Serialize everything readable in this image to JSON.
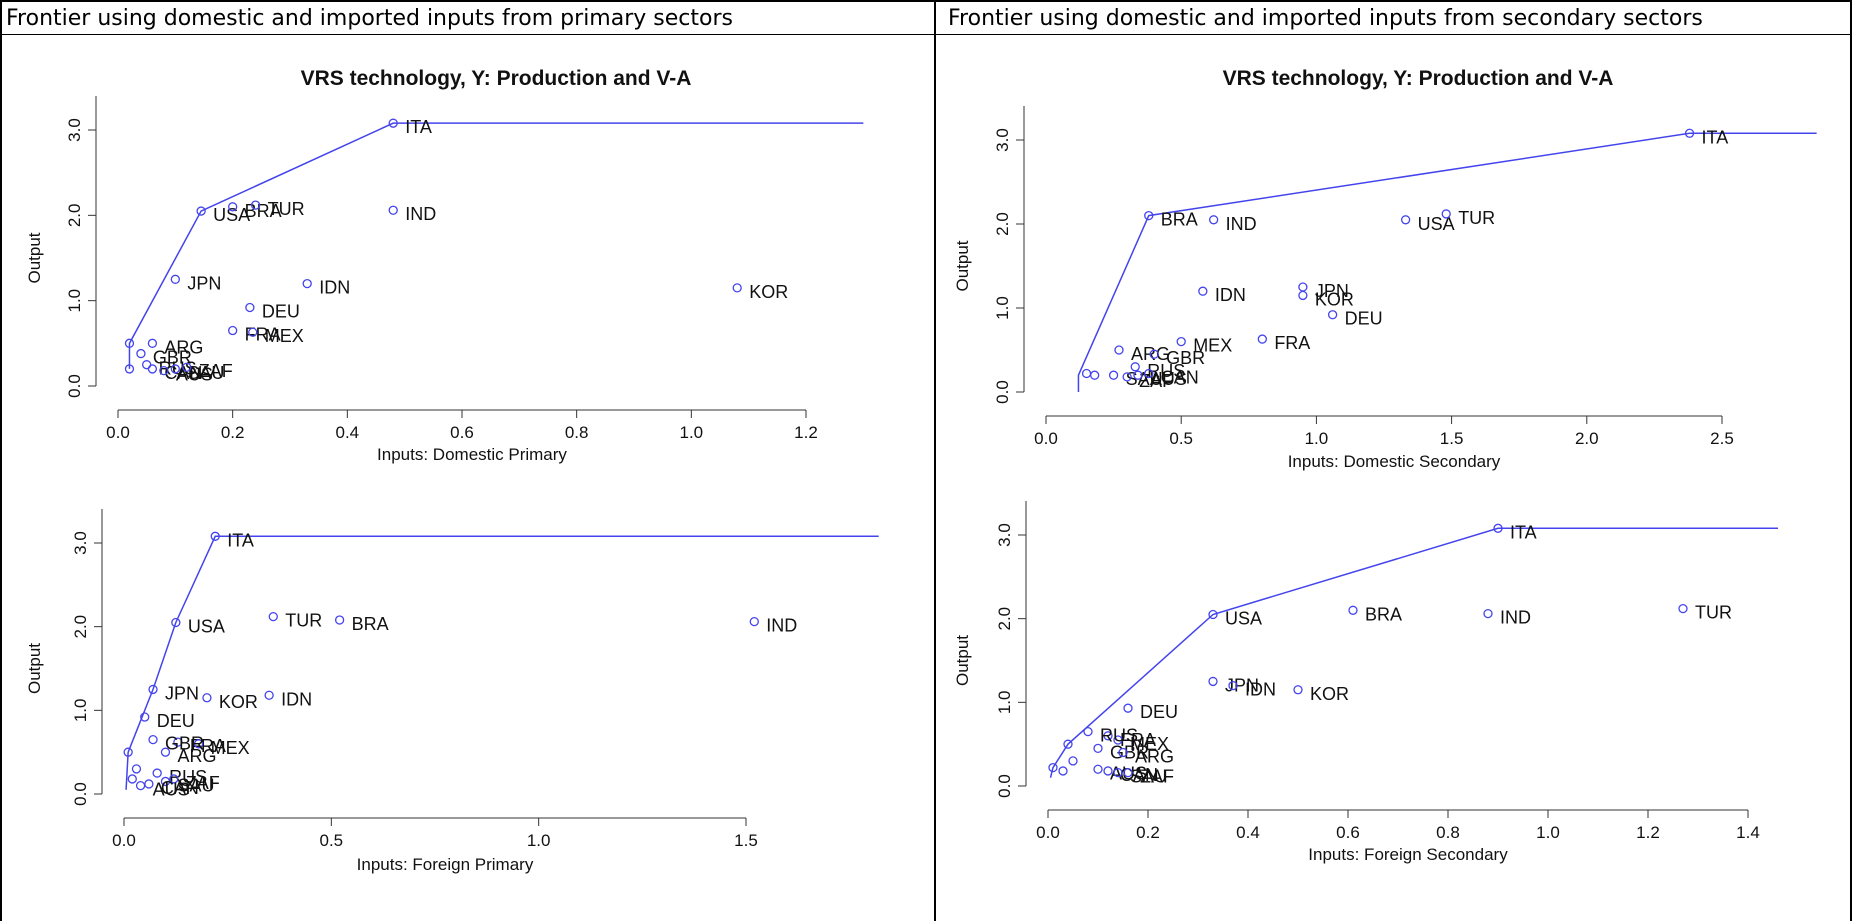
{
  "header": {
    "left_title": "Frontier using domestic and imported inputs from primary sectors",
    "right_title": "Frontier using domestic and imported inputs from secondary sectors"
  },
  "colors": {
    "frontier": "#4444ee",
    "points": "#4444ee",
    "text": "#111111",
    "axis": "#333333"
  },
  "chart_data": [
    {
      "id": "tl",
      "type": "scatter",
      "title": "VRS technology, Y: Production and V-A",
      "xlabel": "Inputs: Domestic Primary",
      "ylabel": "Output",
      "xlim": [
        0,
        1.2
      ],
      "ylim": [
        0,
        3
      ],
      "xticks": [
        "0.0",
        "0.2",
        "0.4",
        "0.6",
        "0.8",
        "1.0",
        "1.2"
      ],
      "yticks": [
        "0.0",
        "1.0",
        "2.0",
        "3.0"
      ],
      "frontier": [
        [
          0.02,
          0.2
        ],
        [
          0.02,
          0.5
        ],
        [
          0.145,
          2.05
        ],
        [
          0.48,
          3.08
        ],
        [
          1.3,
          3.08
        ]
      ],
      "points": [
        {
          "x": 0.48,
          "y": 3.08,
          "label": "ITA"
        },
        {
          "x": 0.145,
          "y": 2.05,
          "label": "USA"
        },
        {
          "x": 0.2,
          "y": 2.1,
          "label": "BRA"
        },
        {
          "x": 0.24,
          "y": 2.12,
          "label": "TUR"
        },
        {
          "x": 0.48,
          "y": 2.06,
          "label": "IND"
        },
        {
          "x": 0.1,
          "y": 1.25,
          "label": "JPN"
        },
        {
          "x": 0.33,
          "y": 1.2,
          "label": "IDN"
        },
        {
          "x": 1.08,
          "y": 1.15,
          "label": "KOR"
        },
        {
          "x": 0.23,
          "y": 0.92,
          "label": "DEU"
        },
        {
          "x": 0.2,
          "y": 0.65,
          "label": "FRA"
        },
        {
          "x": 0.235,
          "y": 0.63,
          "label": "MEX"
        },
        {
          "x": 0.06,
          "y": 0.5,
          "label": "ARG"
        },
        {
          "x": 0.04,
          "y": 0.38,
          "label": "GBR"
        },
        {
          "x": 0.05,
          "y": 0.25,
          "label": "RUS"
        },
        {
          "x": 0.06,
          "y": 0.2,
          "label": "CAN"
        },
        {
          "x": 0.08,
          "y": 0.18,
          "label": "AUS"
        },
        {
          "x": 0.1,
          "y": 0.2,
          "label": "SAU"
        },
        {
          "x": 0.12,
          "y": 0.22,
          "label": "ZAF"
        },
        {
          "x": 0.02,
          "y": 0.5,
          "label": ""
        },
        {
          "x": 0.02,
          "y": 0.2,
          "label": ""
        }
      ],
      "labels_text": [
        "ITA",
        "USA",
        "BRA",
        "TUR",
        "IND",
        "JPN",
        "IDN",
        "KOR",
        "DEU",
        "FRA",
        "MEX",
        "ARG",
        "GBR",
        "RUS",
        "CAN",
        "AUS",
        "SAU",
        "ZAF"
      ]
    },
    {
      "id": "tr",
      "type": "scatter",
      "title": "VRS technology, Y: Production and V-A",
      "xlabel": "Inputs: Domestic Secondary",
      "ylabel": "Output",
      "xlim": [
        0,
        2.5
      ],
      "ylim": [
        0,
        3
      ],
      "xticks": [
        "0.0",
        "0.5",
        "1.0",
        "1.5",
        "2.0",
        "2.5"
      ],
      "yticks": [
        "0.0",
        "1.0",
        "2.0",
        "3.0"
      ],
      "frontier": [
        [
          0.12,
          0.0
        ],
        [
          0.12,
          0.2
        ],
        [
          0.38,
          2.1
        ],
        [
          2.38,
          3.08
        ],
        [
          2.85,
          3.08
        ]
      ],
      "points": [
        {
          "x": 2.38,
          "y": 3.08,
          "label": "ITA"
        },
        {
          "x": 0.38,
          "y": 2.1,
          "label": "BRA"
        },
        {
          "x": 0.62,
          "y": 2.05,
          "label": "IND"
        },
        {
          "x": 1.33,
          "y": 2.05,
          "label": "USA"
        },
        {
          "x": 1.48,
          "y": 2.12,
          "label": "TUR"
        },
        {
          "x": 0.58,
          "y": 1.2,
          "label": "IDN"
        },
        {
          "x": 0.95,
          "y": 1.25,
          "label": "JPN"
        },
        {
          "x": 0.95,
          "y": 1.15,
          "label": "KOR"
        },
        {
          "x": 1.06,
          "y": 0.92,
          "label": "DEU"
        },
        {
          "x": 0.8,
          "y": 0.63,
          "label": "FRA"
        },
        {
          "x": 0.5,
          "y": 0.6,
          "label": "MEX"
        },
        {
          "x": 0.27,
          "y": 0.5,
          "label": "ARG"
        },
        {
          "x": 0.4,
          "y": 0.45,
          "label": "GBR"
        },
        {
          "x": 0.33,
          "y": 0.3,
          "label": "RUS"
        },
        {
          "x": 0.25,
          "y": 0.2,
          "label": "SAU"
        },
        {
          "x": 0.3,
          "y": 0.18,
          "label": "ZAF"
        },
        {
          "x": 0.34,
          "y": 0.2,
          "label": "AUS"
        },
        {
          "x": 0.38,
          "y": 0.22,
          "label": "CAN"
        },
        {
          "x": 0.15,
          "y": 0.22,
          "label": ""
        },
        {
          "x": 0.18,
          "y": 0.2,
          "label": ""
        }
      ],
      "labels_text": [
        "ITA",
        "BRA",
        "IND",
        "USA",
        "TUR",
        "IDN",
        "JPN",
        "KOR",
        "DEU",
        "FRA",
        "MEX",
        "ARG",
        "GBR",
        "RUS",
        "SAU",
        "ZAF",
        "AUS",
        "CAN"
      ]
    },
    {
      "id": "bl",
      "type": "scatter",
      "title": "",
      "xlabel": "Inputs: Foreign Primary",
      "ylabel": "Output",
      "xlim": [
        0,
        1.5
      ],
      "ylim": [
        0,
        3
      ],
      "xticks": [
        "0.0",
        "0.5",
        "1.0",
        "1.5"
      ],
      "yticks": [
        "0.0",
        "1.0",
        "2.0",
        "3.0"
      ],
      "frontier": [
        [
          0.005,
          0.05
        ],
        [
          0.01,
          0.5
        ],
        [
          0.07,
          1.25
        ],
        [
          0.125,
          2.05
        ],
        [
          0.22,
          3.08
        ],
        [
          1.82,
          3.08
        ]
      ],
      "points": [
        {
          "x": 0.22,
          "y": 3.08,
          "label": "ITA"
        },
        {
          "x": 0.125,
          "y": 2.05,
          "label": "USA"
        },
        {
          "x": 0.36,
          "y": 2.12,
          "label": "TUR"
        },
        {
          "x": 0.52,
          "y": 2.08,
          "label": "BRA"
        },
        {
          "x": 1.52,
          "y": 2.06,
          "label": "IND"
        },
        {
          "x": 0.07,
          "y": 1.25,
          "label": "JPN"
        },
        {
          "x": 0.35,
          "y": 1.18,
          "label": "IDN"
        },
        {
          "x": 0.2,
          "y": 1.15,
          "label": "KOR"
        },
        {
          "x": 0.05,
          "y": 0.92,
          "label": "DEU"
        },
        {
          "x": 0.13,
          "y": 0.62,
          "label": "FRA"
        },
        {
          "x": 0.18,
          "y": 0.6,
          "label": "MEX"
        },
        {
          "x": 0.07,
          "y": 0.65,
          "label": "GBR"
        },
        {
          "x": 0.1,
          "y": 0.5,
          "label": "ARG"
        },
        {
          "x": 0.08,
          "y": 0.25,
          "label": "RUS"
        },
        {
          "x": 0.1,
          "y": 0.15,
          "label": "SAU"
        },
        {
          "x": 0.12,
          "y": 0.18,
          "label": "ZAF"
        },
        {
          "x": 0.06,
          "y": 0.12,
          "label": "CAN"
        },
        {
          "x": 0.04,
          "y": 0.1,
          "label": "AUS"
        },
        {
          "x": 0.01,
          "y": 0.5,
          "label": ""
        },
        {
          "x": 0.03,
          "y": 0.3,
          "label": ""
        },
        {
          "x": 0.02,
          "y": 0.18,
          "label": ""
        }
      ],
      "labels_text": [
        "ITA",
        "USA",
        "TUR",
        "BRA",
        "IND",
        "JPN",
        "IDN",
        "KOR",
        "DEU",
        "FRA",
        "MEX",
        "GBR",
        "ARG",
        "RUS",
        "SAU",
        "ZAF",
        "CAN",
        "AUS"
      ]
    },
    {
      "id": "br",
      "type": "scatter",
      "title": "",
      "xlabel": "Inputs: Foreign Secondary",
      "ylabel": "Output",
      "xlim": [
        0,
        1.4
      ],
      "ylim": [
        0,
        3
      ],
      "xticks": [
        "0.0",
        "0.2",
        "0.4",
        "0.6",
        "0.8",
        "1.0",
        "1.2",
        "1.4"
      ],
      "yticks": [
        "0.0",
        "1.0",
        "2.0",
        "3.0"
      ],
      "frontier": [
        [
          0.005,
          0.1
        ],
        [
          0.01,
          0.22
        ],
        [
          0.04,
          0.5
        ],
        [
          0.33,
          2.05
        ],
        [
          0.9,
          3.08
        ],
        [
          1.46,
          3.08
        ]
      ],
      "points": [
        {
          "x": 0.9,
          "y": 3.08,
          "label": "ITA"
        },
        {
          "x": 0.33,
          "y": 2.05,
          "label": "USA"
        },
        {
          "x": 0.61,
          "y": 2.1,
          "label": "BRA"
        },
        {
          "x": 0.88,
          "y": 2.06,
          "label": "IND"
        },
        {
          "x": 1.27,
          "y": 2.12,
          "label": "TUR"
        },
        {
          "x": 0.33,
          "y": 1.25,
          "label": "JPN"
        },
        {
          "x": 0.37,
          "y": 1.2,
          "label": "IDN"
        },
        {
          "x": 0.5,
          "y": 1.15,
          "label": "KOR"
        },
        {
          "x": 0.16,
          "y": 0.93,
          "label": "DEU"
        },
        {
          "x": 0.12,
          "y": 0.6,
          "label": "FRA"
        },
        {
          "x": 0.14,
          "y": 0.55,
          "label": "MEX"
        },
        {
          "x": 0.1,
          "y": 0.45,
          "label": "GBR"
        },
        {
          "x": 0.15,
          "y": 0.4,
          "label": "ARG"
        },
        {
          "x": 0.08,
          "y": 0.65,
          "label": "RUS"
        },
        {
          "x": 0.1,
          "y": 0.2,
          "label": "AUS"
        },
        {
          "x": 0.12,
          "y": 0.18,
          "label": "CAN"
        },
        {
          "x": 0.14,
          "y": 0.16,
          "label": "SAU"
        },
        {
          "x": 0.16,
          "y": 0.16,
          "label": "ZAF"
        },
        {
          "x": 0.01,
          "y": 0.22,
          "label": ""
        },
        {
          "x": 0.04,
          "y": 0.5,
          "label": ""
        },
        {
          "x": 0.05,
          "y": 0.3,
          "label": ""
        },
        {
          "x": 0.03,
          "y": 0.18,
          "label": ""
        }
      ],
      "labels_text": [
        "ITA",
        "USA",
        "BRA",
        "IND",
        "TUR",
        "JPN",
        "IDN",
        "KOR",
        "DEU",
        "FRA",
        "MEX",
        "GBR",
        "ARG",
        "RUS",
        "AUS",
        "CAN",
        "SAU",
        "ZAF"
      ]
    }
  ]
}
